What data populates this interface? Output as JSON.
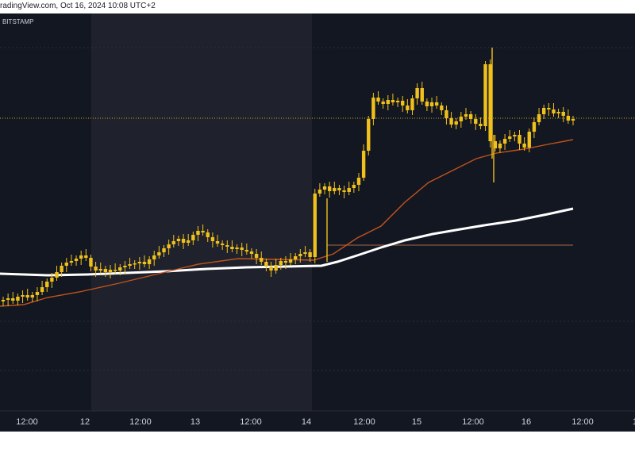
{
  "header": {
    "source_text": "radingView.com, Oct 16, 2024 10:08 UTC+2"
  },
  "chart_data": {
    "type": "candlestick",
    "title": "BITSTAMP",
    "xlabel": "",
    "ylabel": "",
    "x_tick_labels": [
      "12:00",
      "12",
      "12:00",
      "13",
      "12:00",
      "14",
      "12:00",
      "15",
      "12:00",
      "16",
      "12:00",
      "1"
    ],
    "colors": {
      "background": "#131722",
      "session_highlight": "#1f222c",
      "candle": "#f0c01c",
      "ema_short": "#c2531b",
      "ema_long": "#ffffff",
      "hline_dotted": "#c9a227",
      "hline_solid": "#8a5a3e"
    },
    "series": [
      {
        "type": "ema",
        "color": "#c2531b"
      },
      {
        "type": "ema",
        "color": "#ffffff"
      }
    ],
    "grid": true,
    "legend": "none"
  }
}
